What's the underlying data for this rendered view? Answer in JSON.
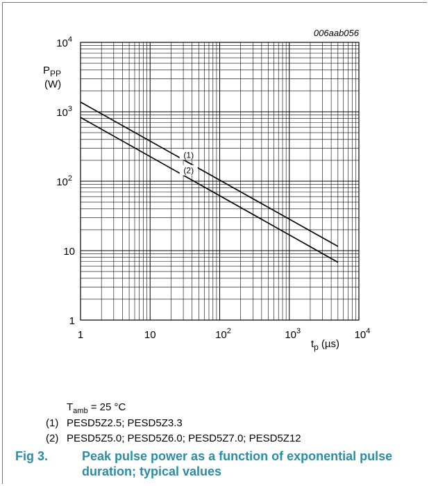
{
  "chart_data": {
    "type": "line",
    "figure_id": "006aab056",
    "x_scale": "log",
    "y_scale": "log",
    "xlim": [
      1,
      10000
    ],
    "ylim": [
      1,
      10000
    ],
    "grid": true,
    "x_ticks": [
      {
        "value": 1,
        "base": "1",
        "exp": ""
      },
      {
        "value": 10,
        "base": "10",
        "exp": ""
      },
      {
        "value": 100,
        "base": "10",
        "exp": "2"
      },
      {
        "value": 1000,
        "base": "10",
        "exp": "3"
      },
      {
        "value": 10000,
        "base": "10",
        "exp": "4"
      }
    ],
    "y_ticks": [
      {
        "value": 1,
        "base": "1",
        "exp": ""
      },
      {
        "value": 10,
        "base": "10",
        "exp": ""
      },
      {
        "value": 100,
        "base": "10",
        "exp": "2"
      },
      {
        "value": 1000,
        "base": "10",
        "exp": "3"
      },
      {
        "value": 10000,
        "base": "10",
        "exp": "4"
      }
    ],
    "ylabel": {
      "main": "P",
      "sub": "PP",
      "unit": "(W)"
    },
    "xlabel": {
      "main": "t",
      "sub": "p",
      "unit": "(µs)"
    },
    "series": [
      {
        "label": "(1)",
        "x": [
          1,
          5000
        ],
        "y": [
          1380,
          11.5
        ]
      },
      {
        "label": "(2)",
        "x": [
          1,
          5000
        ],
        "y": [
          830,
          6.8
        ]
      }
    ]
  },
  "notes": {
    "tamb_main": "T",
    "tamb_sub": "amb",
    "tamb_value": "= 25 °C",
    "legend": [
      {
        "key": "(1)",
        "text": "PESD5Z2.5; PESD5Z3.3"
      },
      {
        "key": "(2)",
        "text": "PESD5Z5.0; PESD5Z6.0; PESD5Z7.0; PESD5Z12"
      }
    ]
  },
  "caption": {
    "number": "Fig 3.",
    "text": "Peak pulse power as a function of exponential pulse duration; typical values"
  },
  "colors": {
    "frame": "#3f8d9b",
    "caption": "#2a8da6",
    "line": "#000000"
  }
}
